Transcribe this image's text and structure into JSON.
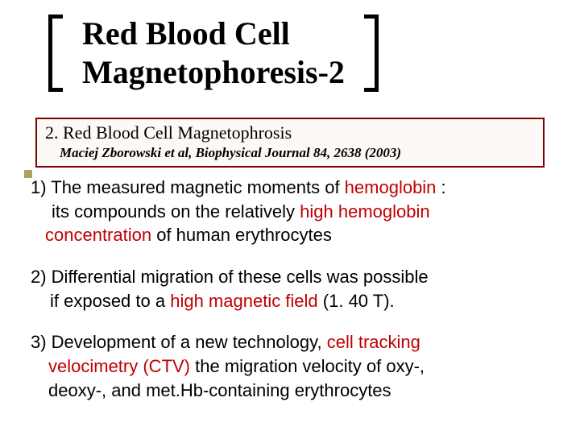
{
  "title": {
    "line1": "Red Blood Cell",
    "line2": "Magnetophoresis-2"
  },
  "reference": {
    "heading": "2. Red Blood Cell Magnetophrosis",
    "citation": "Maciej Zborowski et al, Biophysical Journal 84, 2638 (2003)"
  },
  "points": {
    "p1": {
      "lead": "1) The measured magnetic moments of ",
      "hl1": "hemoglobin",
      "after1": " :",
      "line2a": " its compounds on the relatively ",
      "hl2": "high hemoglobin",
      "line3a": "concentration",
      "after3": " of human erythrocytes"
    },
    "p2": {
      "line1": "2) Differential migration of these cells was possible",
      "line2a": " if exposed to a ",
      "hl": "high magnetic field",
      "after": " (1. 40 T)."
    },
    "p3": {
      "line1a": "3) Development of a new technology, ",
      "hl1": "cell tracking",
      "hl2": "velocimetry (CTV)",
      "after2": " the migration velocity of oxy-,",
      "line3": "deoxy-, and met.Hb-containing erythrocytes"
    }
  },
  "colors": {
    "highlight": "#c00000",
    "box_border": "#800000",
    "accent_square": "#b0a060"
  }
}
